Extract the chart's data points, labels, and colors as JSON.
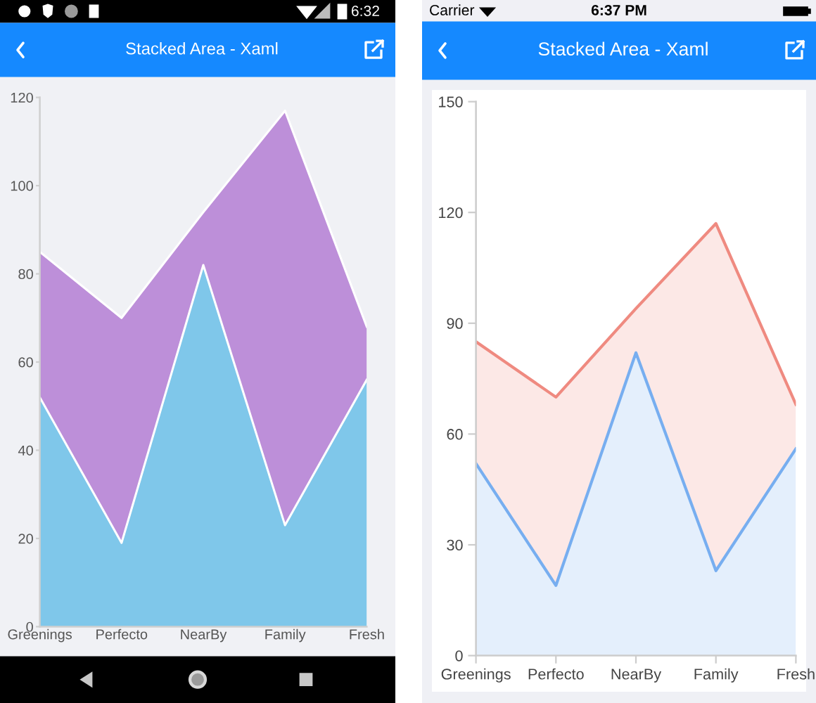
{
  "chart_data": [
    {
      "type": "area",
      "title": "Stacked Area - Xaml",
      "annotations": [
        "6:32"
      ],
      "categories": [
        "Greenings",
        "Perfecto",
        "NearBy",
        "Family",
        "Fresh"
      ],
      "stacked": true,
      "series": [
        {
          "color": "#7fc7ea",
          "values": [
            52,
            19,
            82,
            23,
            56
          ]
        },
        {
          "color": "#bd8fd9",
          "values": [
            33,
            51,
            12,
            94,
            12
          ]
        }
      ],
      "ylim": [
        0,
        120
      ],
      "yticks": [
        0,
        20,
        40,
        60,
        80,
        100,
        120
      ]
    },
    {
      "type": "area",
      "title": "Stacked Area - Xaml",
      "annotations": [
        "Carrier",
        "6:37 PM"
      ],
      "categories": [
        "Greenings",
        "Perfecto",
        "NearBy",
        "Family",
        "Fresh"
      ],
      "stacked": true,
      "series": [
        {
          "color": "#77aef0",
          "values": [
            52,
            19,
            82,
            23,
            56
          ]
        },
        {
          "color": "#ef8a80",
          "values": [
            33,
            51,
            12,
            94,
            12
          ]
        }
      ],
      "ylim": [
        0,
        150
      ],
      "yticks": [
        0,
        30,
        60,
        90,
        120,
        150
      ]
    }
  ]
}
